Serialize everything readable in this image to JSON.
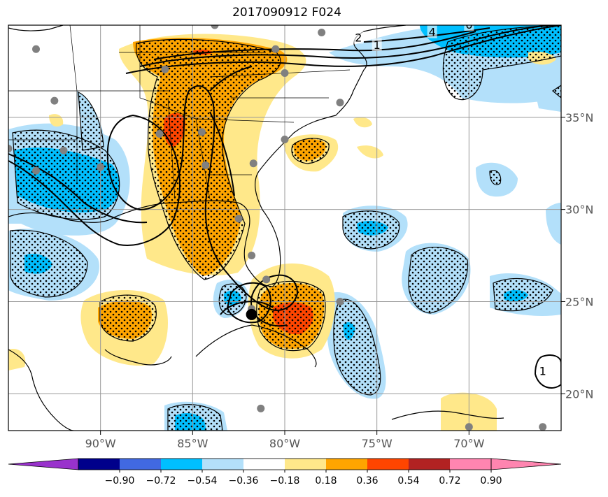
{
  "title": "2017090912 F024",
  "map": {
    "lon_range": [
      -95,
      -65
    ],
    "lat_range": [
      18,
      40
    ],
    "lon_ticks": [
      {
        "lon": -90,
        "label": "90°W"
      },
      {
        "lon": -85,
        "label": "85°W"
      },
      {
        "lon": -80,
        "label": "80°W"
      },
      {
        "lon": -75,
        "label": "75°W"
      },
      {
        "lon": -70,
        "label": "70°W"
      }
    ],
    "lat_ticks": [
      {
        "lat": 20,
        "label": "20°N"
      },
      {
        "lat": 25,
        "label": "25°N"
      },
      {
        "lat": 30,
        "label": "30°N"
      },
      {
        "lat": 35,
        "label": "35°N"
      }
    ],
    "contour_labels": [
      {
        "text": "1",
        "lon": -75.0,
        "lat": 38.9
      },
      {
        "text": "2",
        "lon": -76.0,
        "lat": 39.3
      },
      {
        "text": "4",
        "lon": -72.0,
        "lat": 39.6
      },
      {
        "text": "6",
        "lon": -70.0,
        "lat": 40.0
      },
      {
        "text": "1",
        "lon": -66.0,
        "lat": 21.2
      }
    ],
    "storm_center": {
      "lon": -81.8,
      "lat": 24.3
    },
    "stations": [
      [
        -93.5,
        38.7
      ],
      [
        -83.8,
        40.0
      ],
      [
        -78.0,
        39.6
      ],
      [
        -80.5,
        38.7
      ],
      [
        -86.5,
        37.6
      ],
      [
        -80.0,
        37.4
      ],
      [
        -92.5,
        35.9
      ],
      [
        -77.0,
        35.8
      ],
      [
        -86.8,
        34.1
      ],
      [
        -84.5,
        34.2
      ],
      [
        -80.0,
        33.8
      ],
      [
        -95.0,
        33.3
      ],
      [
        -92.0,
        33.2
      ],
      [
        -90.0,
        32.3
      ],
      [
        -93.5,
        32.1
      ],
      [
        -84.3,
        32.4
      ],
      [
        -81.7,
        32.5
      ],
      [
        -82.5,
        29.5
      ],
      [
        -81.8,
        27.5
      ],
      [
        -81.0,
        26.2
      ],
      [
        -77.0,
        25.0
      ],
      [
        -81.8,
        24.6
      ],
      [
        -81.3,
        19.2
      ],
      [
        -70.0,
        18.2
      ],
      [
        -66.0,
        18.2
      ]
    ]
  },
  "colorbar": {
    "labels": [
      "−0.90",
      "−0.72",
      "−0.54",
      "−0.36",
      "−0.18",
      "0.18",
      "0.36",
      "0.54",
      "0.72",
      "0.90"
    ],
    "colors": [
      "#9932cc",
      "#00008b",
      "#4169e1",
      "#00bfff",
      "#b3e0fa",
      "#ffffff",
      "#ffe88a",
      "#ffa500",
      "#ff4500",
      "#b22222",
      "#ff85b0",
      "#ff85b0"
    ]
  }
}
